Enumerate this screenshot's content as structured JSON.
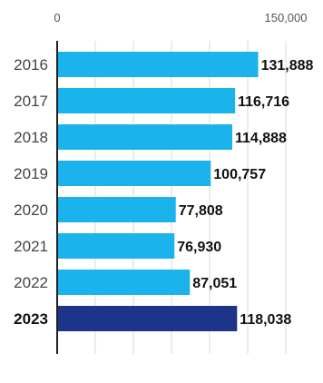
{
  "chart_data": {
    "type": "bar",
    "orientation": "horizontal",
    "categories": [
      "2016",
      "2017",
      "2018",
      "2019",
      "2020",
      "2021",
      "2022",
      "2023"
    ],
    "values": [
      131888,
      116716,
      114888,
      100757,
      77808,
      76930,
      87051,
      118038
    ],
    "value_labels": [
      "131,888",
      "116,716",
      "114,888",
      "100,757",
      "77,808",
      "76,930",
      "87,051",
      "118,038"
    ],
    "highlight_category": "2023",
    "xlim": [
      0,
      150000
    ],
    "x_ticks": [
      0,
      150000
    ],
    "x_tick_labels": [
      "0",
      "150,000"
    ],
    "grid": true,
    "colors": {
      "bar": "#1ab3ec",
      "highlight": "#1c3489",
      "axis": "#222222",
      "grid": "#d9d9d9"
    }
  }
}
